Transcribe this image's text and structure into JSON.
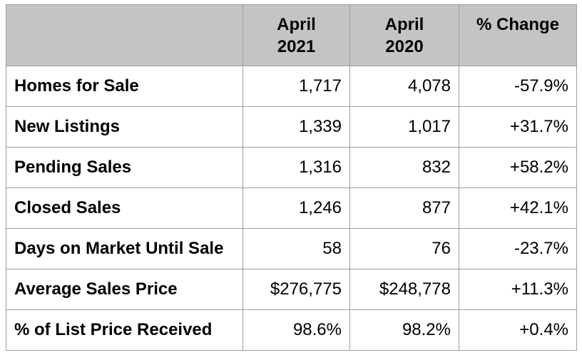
{
  "header": {
    "label_col": "",
    "col1": {
      "line1": "April",
      "line2": "2021"
    },
    "col2": {
      "line1": "April",
      "line2": "2020"
    },
    "col3": "% Change"
  },
  "rows": [
    {
      "label": "Homes for Sale",
      "v2021": "1,717",
      "v2020": "4,078",
      "change": "-57.9%"
    },
    {
      "label": "New Listings",
      "v2021": "1,339",
      "v2020": "1,017",
      "change": "+31.7%"
    },
    {
      "label": "Pending Sales",
      "v2021": "1,316",
      "v2020": "832",
      "change": "+58.2%"
    },
    {
      "label": "Closed Sales",
      "v2021": "1,246",
      "v2020": "877",
      "change": "+42.1%"
    },
    {
      "label": "Days on Market Until Sale",
      "v2021": "58",
      "v2020": "76",
      "change": "-23.7%"
    },
    {
      "label": "Average Sales Price",
      "v2021": "$276,775",
      "v2020": "$248,778",
      "change": "+11.3%"
    },
    {
      "label": "% of List Price Received",
      "v2021": "98.6%",
      "v2020": "98.2%",
      "change": "+0.4%"
    }
  ],
  "colors": {
    "header_bg": "#c4c4c4",
    "border": "#9e9e9e",
    "text": "#000000"
  }
}
